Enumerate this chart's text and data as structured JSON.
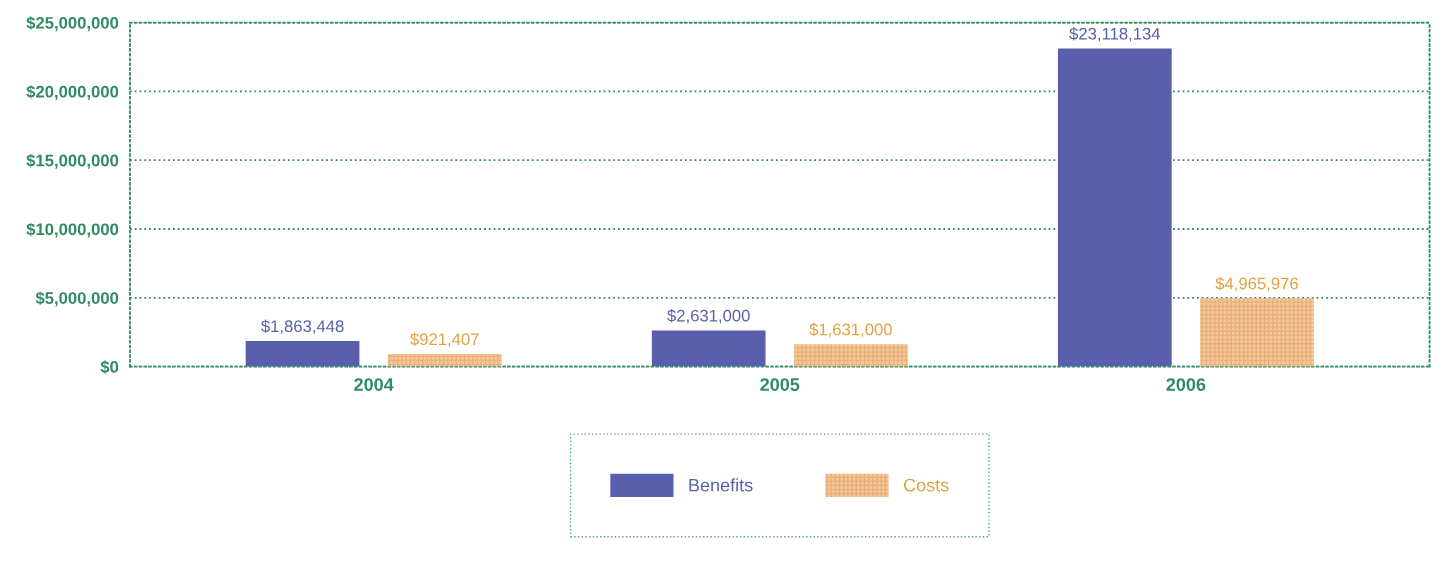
{
  "chart_data": {
    "type": "bar",
    "categories": [
      "2004",
      "2005",
      "2006"
    ],
    "series": [
      {
        "name": "Benefits",
        "color": "#5a5fad",
        "values": [
          1863448,
          2631000,
          23118134
        ],
        "value_labels": [
          "$1,863,448",
          "$2,631,000",
          "$23,118,134"
        ]
      },
      {
        "name": "Costs",
        "color": "#f5c99a",
        "values": [
          921407,
          1631000,
          4965976
        ],
        "value_labels": [
          "$921,407",
          "$1,631,000",
          "$4,965,976"
        ]
      }
    ],
    "ylim": [
      0,
      25000000
    ],
    "yticks": [
      {
        "value": 0,
        "label": "$0"
      },
      {
        "value": 5000000,
        "label": "$5,000,000"
      },
      {
        "value": 10000000,
        "label": "$10,000,000"
      },
      {
        "value": 15000000,
        "label": "$15,000,000"
      },
      {
        "value": 20000000,
        "label": "$20,000,000"
      },
      {
        "value": 25000000,
        "label": "$25,000,000"
      }
    ],
    "grid": "y",
    "legend": "bottom"
  }
}
